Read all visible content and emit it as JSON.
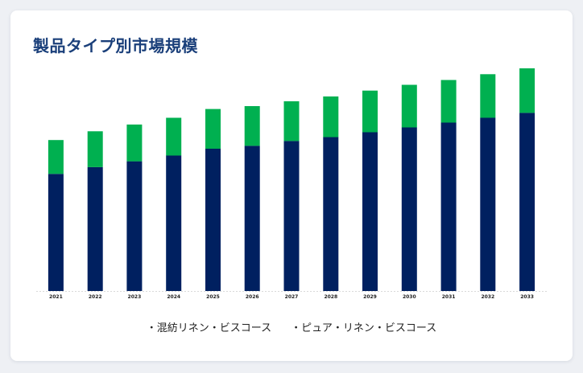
{
  "title": "製品タイプ別市場規模",
  "legend": {
    "item1": "・混紡リネン・ビスコース",
    "item2": "・ピュア・リネン・ビスコース"
  },
  "colors": {
    "blended": "#002060",
    "pure": "#00b050",
    "title": "#1a3f7a"
  },
  "chart_data": {
    "type": "bar",
    "stacked": true,
    "categories": [
      "2021",
      "2022",
      "2023",
      "2024",
      "2025",
      "2026",
      "2027",
      "2028",
      "2029",
      "2030",
      "2031",
      "2032",
      "2033"
    ],
    "series": [
      {
        "name": "混紡リネン・ビスコース",
        "color": "#002060",
        "values": [
          121,
          128,
          134,
          140,
          147,
          150,
          155,
          159,
          164,
          169,
          174,
          179,
          184
        ]
      },
      {
        "name": "ピュア・リネン・ビスコース",
        "color": "#00b050",
        "values": [
          35,
          37,
          38,
          39,
          41,
          41,
          41,
          42,
          43,
          44,
          44,
          45,
          46
        ]
      }
    ],
    "ylim": [
      0,
      240
    ],
    "xlabel": "",
    "ylabel": "",
    "grid": false,
    "legend_position": "bottom"
  }
}
